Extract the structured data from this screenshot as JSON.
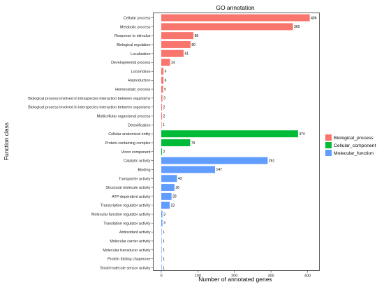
{
  "chart_data": {
    "type": "bar",
    "orientation": "horizontal",
    "title": "GO annotation",
    "xlabel": "Number of annotated genes",
    "ylabel": "Function class",
    "xlim": [
      0,
      420
    ],
    "xticks": [
      0,
      100,
      200,
      300,
      400
    ],
    "grid": false,
    "legend_position": "right",
    "series": [
      {
        "name": "Biological_process",
        "color": "#F8766D"
      },
      {
        "name": "Cellular_component",
        "color": "#00BA38"
      },
      {
        "name": "Molecular_function",
        "color": "#619CFF"
      }
    ],
    "bars": [
      {
        "label": "Cellular process",
        "value": 406,
        "series": "Biological_process"
      },
      {
        "label": "Metabolic process",
        "value": 360,
        "series": "Biological_process"
      },
      {
        "label": "Response to stimulus",
        "value": 88,
        "series": "Biological_process"
      },
      {
        "label": "Biological regulation",
        "value": 80,
        "series": "Biological_process"
      },
      {
        "label": "Localization",
        "value": 61,
        "series": "Biological_process"
      },
      {
        "label": "Developmental process",
        "value": 24,
        "series": "Biological_process"
      },
      {
        "label": "Locomotion",
        "value": 6,
        "series": "Biological_process"
      },
      {
        "label": "Reproduction",
        "value": 6,
        "series": "Biological_process"
      },
      {
        "label": "Homeostatic process",
        "value": 5,
        "series": "Biological_process"
      },
      {
        "label": "Biological process involved in intraspecies interaction between organisms",
        "value": 3,
        "series": "Biological_process"
      },
      {
        "label": "Biological process involved in interspecies interaction between organisms",
        "value": 2,
        "series": "Biological_process"
      },
      {
        "label": "Multicellular organismal process",
        "value": 2,
        "series": "Biological_process"
      },
      {
        "label": "Detoxification",
        "value": 1,
        "series": "Biological_process"
      },
      {
        "label": "Cellular anatomical entity",
        "value": 374,
        "series": "Cellular_component"
      },
      {
        "label": "Protein-containing complex",
        "value": 79,
        "series": "Cellular_component"
      },
      {
        "label": "Virion component",
        "value": 2,
        "series": "Cellular_component"
      },
      {
        "label": "Catalytic activity",
        "value": 291,
        "series": "Molecular_function"
      },
      {
        "label": "Binding",
        "value": 147,
        "series": "Molecular_function"
      },
      {
        "label": "Transporter activity",
        "value": 43,
        "series": "Molecular_function"
      },
      {
        "label": "Structural molecule activity",
        "value": 36,
        "series": "Molecular_function"
      },
      {
        "label": "ATP-dependent activity",
        "value": 28,
        "series": "Molecular_function"
      },
      {
        "label": "Transcription regulator activity",
        "value": 23,
        "series": "Molecular_function"
      },
      {
        "label": "Molecular function regulator activity",
        "value": 3,
        "series": "Molecular_function"
      },
      {
        "label": "Translation regulator activity",
        "value": 3,
        "series": "Molecular_function"
      },
      {
        "label": "Antioxidant activity",
        "value": 1,
        "series": "Molecular_function"
      },
      {
        "label": "Molecular carrier activity",
        "value": 1,
        "series": "Molecular_function"
      },
      {
        "label": "Molecular transducer activity",
        "value": 1,
        "series": "Molecular_function"
      },
      {
        "label": "Protein folding chaperone",
        "value": 1,
        "series": "Molecular_function"
      },
      {
        "label": "Small molecule sensor activity",
        "value": 1,
        "series": "Molecular_function"
      }
    ]
  }
}
